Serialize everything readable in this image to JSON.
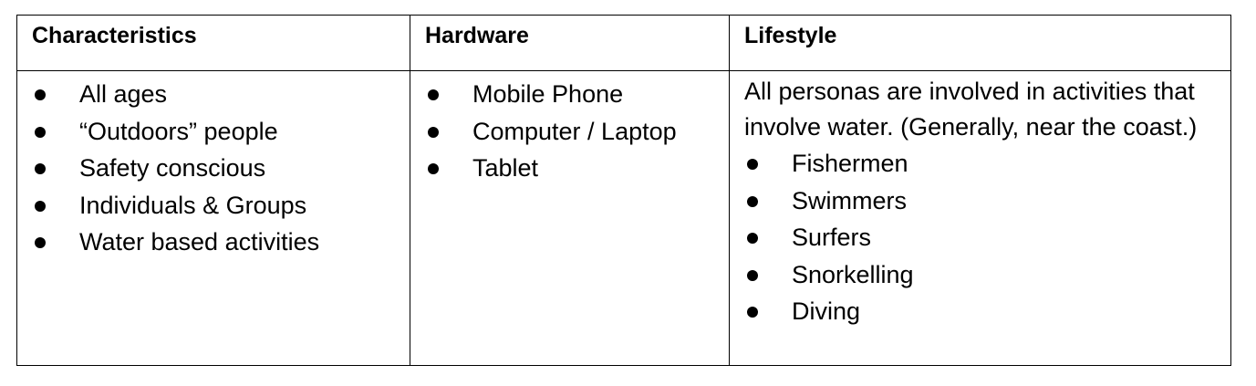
{
  "table": {
    "headers": {
      "characteristics": "Characteristics",
      "hardware": "Hardware",
      "lifestyle": "Lifestyle"
    },
    "characteristics_items": [
      "All ages",
      "“Outdoors” people",
      "Safety conscious",
      "Individuals & Groups",
      "Water based activities"
    ],
    "hardware_items": [
      "Mobile Phone",
      "Computer / Laptop",
      "Tablet"
    ],
    "lifestyle_intro": "All personas are involved in activities that involve water. (Generally, near the coast.)",
    "lifestyle_items": [
      "Fishermen",
      "Swimmers",
      "Surfers",
      "Snorkelling",
      "Diving"
    ]
  }
}
